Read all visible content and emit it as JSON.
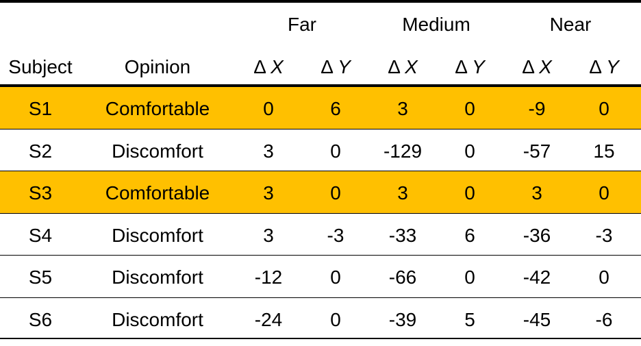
{
  "table": {
    "group_headers": [
      "Far",
      "Medium",
      "Near"
    ],
    "column_headers": [
      "Subject",
      "Opinion",
      "Δ X",
      "Δ Y",
      "Δ X",
      "Δ Y",
      "Δ X",
      "Δ Y"
    ],
    "rows": [
      [
        "S1",
        "Comfortable",
        "0",
        "6",
        "3",
        "0",
        "-9",
        "0"
      ],
      [
        "S2",
        "Discomfort",
        "3",
        "0",
        "-129",
        "0",
        "-57",
        "15"
      ],
      [
        "S3",
        "Comfortable",
        "3",
        "0",
        "3",
        "0",
        "3",
        "0"
      ],
      [
        "S4",
        "Discomfort",
        "3",
        "-3",
        "-33",
        "6",
        "-36",
        "-3"
      ],
      [
        "S5",
        "Discomfort",
        "-12",
        "0",
        "-66",
        "0",
        "-42",
        "0"
      ],
      [
        "S6",
        "Discomfort",
        "-24",
        "0",
        "-39",
        "5",
        "-45",
        "-6"
      ]
    ],
    "highlight_color": "#FFC000"
  }
}
